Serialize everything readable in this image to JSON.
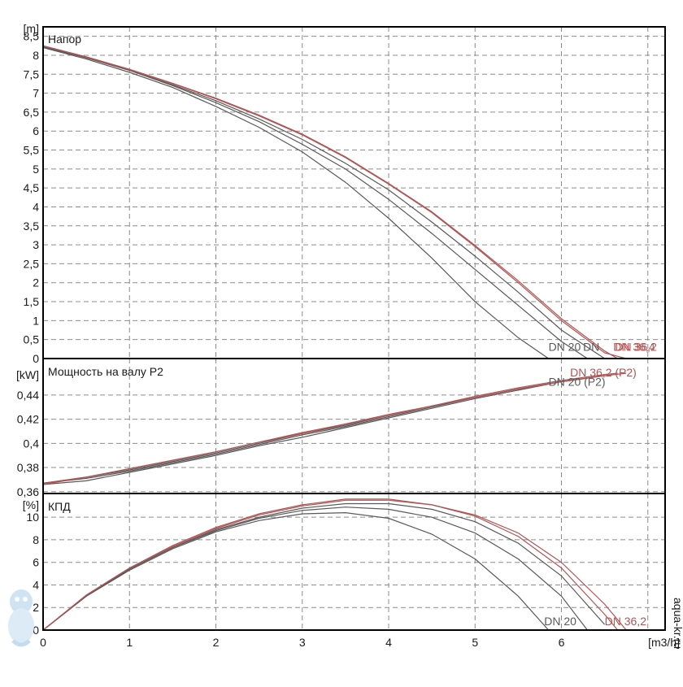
{
  "chart_data": [
    {
      "type": "line",
      "title": "Напор",
      "ylabel": "[m]",
      "xlim": [
        0,
        7.2
      ],
      "ylim": [
        0,
        8.75
      ],
      "yticks": [
        "0",
        "0,5",
        "1",
        "1,5",
        "2",
        "2,5",
        "3",
        "3,5",
        "4",
        "4,5",
        "5",
        "5,5",
        "6",
        "6,5",
        "7",
        "7,5",
        "8",
        "8,5"
      ],
      "grid": true,
      "series": [
        {
          "name": "DN 20",
          "color": "#595959",
          "x": [
            0,
            0.5,
            1,
            1.5,
            2,
            2.5,
            3,
            3.5,
            4,
            4.5,
            5,
            5.5,
            5.85
          ],
          "y": [
            8.2,
            7.9,
            7.55,
            7.15,
            6.65,
            6.1,
            5.45,
            4.65,
            3.7,
            2.65,
            1.5,
            0.55,
            0
          ]
        },
        {
          "name": "",
          "color": "#595959",
          "x": [
            0,
            0.5,
            1,
            1.5,
            2,
            2.5,
            3,
            3.5,
            4,
            4.5,
            5,
            5.5,
            6,
            6.3
          ],
          "y": [
            8.22,
            7.93,
            7.6,
            7.2,
            6.75,
            6.25,
            5.65,
            5.0,
            4.2,
            3.3,
            2.35,
            1.4,
            0.45,
            0
          ]
        },
        {
          "name": "",
          "color": "#595959",
          "x": [
            0,
            0.5,
            1,
            1.5,
            2,
            2.5,
            3,
            3.5,
            4,
            4.5,
            5,
            5.5,
            6,
            6.5
          ],
          "y": [
            8.22,
            7.94,
            7.6,
            7.22,
            6.8,
            6.32,
            5.78,
            5.15,
            4.45,
            3.6,
            2.7,
            1.75,
            0.75,
            0
          ]
        },
        {
          "name": "DN 36,4",
          "color": "#b05555",
          "x": [
            0,
            0.5,
            1,
            1.5,
            2,
            2.5,
            3,
            3.5,
            4,
            4.5,
            5,
            5.5,
            6,
            6.5,
            6.75
          ],
          "y": [
            8.25,
            7.95,
            7.62,
            7.25,
            6.85,
            6.4,
            5.9,
            5.3,
            4.6,
            3.85,
            2.95,
            2.0,
            1.0,
            0.15,
            0
          ]
        },
        {
          "name": "DN 36,2",
          "color": "#b05555",
          "x": [
            0,
            0.5,
            1,
            1.5,
            2,
            2.5,
            3,
            3.5,
            4,
            4.5,
            5,
            5.5,
            6,
            6.5,
            6.65
          ],
          "y": [
            8.25,
            7.96,
            7.63,
            7.26,
            6.87,
            6.42,
            5.92,
            5.32,
            4.62,
            3.87,
            2.98,
            2.05,
            1.05,
            0.2,
            0
          ]
        }
      ],
      "curve_labels": [
        {
          "text": "DN 20",
          "x": 5.85,
          "y": 0.2,
          "color": "#595959"
        },
        {
          "text": "DN",
          "x": 6.25,
          "y": 0.2,
          "color": "#595959"
        },
        {
          "text": "DN 36,4",
          "x": 6.6,
          "y": 0.2,
          "color": "#b05555"
        },
        {
          "text": "DN 36,2",
          "x": 6.62,
          "y": 0.2,
          "color": "#b05555"
        }
      ]
    },
    {
      "type": "line",
      "title": "Мощность на валу P2",
      "ylabel": "[kW]",
      "xlim": [
        0,
        7.2
      ],
      "ylim": [
        0.3585,
        0.4702
      ],
      "yticks": [
        "0,36",
        "0,38",
        "0,4",
        "0,42",
        "0,44"
      ],
      "grid": true,
      "series": [
        {
          "name": "DN 20 (P2)",
          "color": "#595959",
          "x": [
            0,
            0.5,
            1,
            1.5,
            2,
            2.5,
            3,
            3.5,
            4,
            4.5,
            5,
            5.5,
            5.85
          ],
          "y": [
            0.366,
            0.369,
            0.376,
            0.383,
            0.39,
            0.398,
            0.405,
            0.413,
            0.421,
            0.429,
            0.437,
            0.444,
            0.449
          ]
        },
        {
          "name": "",
          "color": "#595959",
          "x": [
            0,
            0.5,
            1,
            1.5,
            2,
            2.5,
            3,
            3.5,
            4,
            4.5,
            5,
            5.5,
            6,
            6.3
          ],
          "y": [
            0.367,
            0.371,
            0.377,
            0.384,
            0.391,
            0.399,
            0.407,
            0.414,
            0.422,
            0.43,
            0.438,
            0.445,
            0.451,
            0.454
          ]
        },
        {
          "name": "",
          "color": "#595959",
          "x": [
            0,
            0.5,
            1,
            1.5,
            2,
            2.5,
            3,
            3.5,
            4,
            4.5,
            5,
            5.5,
            6,
            6.5
          ],
          "y": [
            0.367,
            0.372,
            0.378,
            0.385,
            0.392,
            0.4,
            0.408,
            0.415,
            0.423,
            0.431,
            0.438,
            0.445,
            0.451,
            0.456
          ]
        },
        {
          "name": "",
          "color": "#b05555",
          "x": [
            0,
            0.5,
            1,
            1.5,
            2,
            2.5,
            3,
            3.5,
            4,
            4.5,
            5,
            5.5,
            6,
            6.5,
            6.75
          ],
          "y": [
            0.366,
            0.372,
            0.379,
            0.386,
            0.393,
            0.401,
            0.408,
            0.416,
            0.423,
            0.431,
            0.438,
            0.445,
            0.451,
            0.456,
            0.458
          ]
        },
        {
          "name": "DN 36,2 (P2)",
          "color": "#b05555",
          "x": [
            0,
            0.5,
            1,
            1.5,
            2,
            2.5,
            3,
            3.5,
            4,
            4.5,
            5,
            5.5,
            6,
            6.5,
            6.65
          ],
          "y": [
            0.367,
            0.372,
            0.379,
            0.386,
            0.393,
            0.401,
            0.409,
            0.416,
            0.424,
            0.431,
            0.439,
            0.446,
            0.452,
            0.457,
            0.458
          ]
        }
      ],
      "curve_labels": [
        {
          "text": "DN 36,2 (P2)",
          "x": 6.1,
          "y": 0.4555,
          "color": "#b05555"
        },
        {
          "text": "DN 20 (P2)",
          "x": 5.85,
          "y": 0.4475,
          "color": "#595959"
        }
      ]
    },
    {
      "type": "line",
      "title": "КПД",
      "ylabel": "[%]",
      "xlabel": "[m3/h]",
      "xlim": [
        0,
        7.2
      ],
      "ylim": [
        0,
        12.1
      ],
      "xticks": [
        "0",
        "1",
        "2",
        "3",
        "4",
        "5",
        "6"
      ],
      "yticks": [
        "0",
        "2",
        "4",
        "6",
        "8",
        "10"
      ],
      "grid": true,
      "series": [
        {
          "name": "DN 20",
          "color": "#595959",
          "x": [
            0,
            0.5,
            1,
            1.5,
            2,
            2.5,
            3,
            3.5,
            4,
            4.5,
            5,
            5.5,
            5.85
          ],
          "y": [
            0,
            3.0,
            5.3,
            7.2,
            8.7,
            9.7,
            10.3,
            10.4,
            9.9,
            8.5,
            6.3,
            3.0,
            0
          ]
        },
        {
          "name": "",
          "color": "#595959",
          "x": [
            0,
            0.5,
            1,
            1.5,
            2,
            2.5,
            3,
            3.5,
            4,
            4.5,
            5,
            5.5,
            6,
            6.3
          ],
          "y": [
            0,
            3.0,
            5.4,
            7.3,
            8.8,
            9.9,
            10.6,
            10.9,
            10.7,
            10.0,
            8.6,
            6.3,
            3.0,
            0
          ]
        },
        {
          "name": "",
          "color": "#595959",
          "x": [
            0,
            0.5,
            1,
            1.5,
            2,
            2.5,
            3,
            3.5,
            4,
            4.5,
            5,
            5.5,
            6,
            6.5
          ],
          "y": [
            0,
            3.0,
            5.4,
            7.3,
            8.9,
            10.0,
            10.8,
            11.2,
            11.2,
            10.7,
            9.6,
            7.7,
            4.8,
            0.5
          ]
        },
        {
          "name": "",
          "color": "#b05555",
          "x": [
            0,
            0.5,
            1,
            1.5,
            2,
            2.5,
            3,
            3.5,
            4,
            4.5,
            5,
            5.5,
            6,
            6.5,
            6.75
          ],
          "y": [
            0,
            3.1,
            5.5,
            7.4,
            9.0,
            10.2,
            11.0,
            11.5,
            11.5,
            11.1,
            10.2,
            8.6,
            6.0,
            2.3,
            0
          ]
        },
        {
          "name": "DN 36,2",
          "color": "#b05555",
          "x": [
            0,
            0.5,
            1,
            1.5,
            2,
            2.5,
            3,
            3.5,
            4,
            4.5,
            5,
            5.5,
            6,
            6.5,
            6.65
          ],
          "y": [
            0,
            3.1,
            5.5,
            7.5,
            9.1,
            10.3,
            11.1,
            11.6,
            11.6,
            11.1,
            10.1,
            8.3,
            5.5,
            1.4,
            0
          ]
        }
      ],
      "curve_labels": [
        {
          "text": "DN 20",
          "x": 5.8,
          "y": 0.45,
          "color": "#595959"
        },
        {
          "text": "DN 36,2",
          "x": 6.5,
          "y": 0.45,
          "color": "#b05555"
        }
      ]
    }
  ],
  "watermark": "aqua-kr.ru"
}
